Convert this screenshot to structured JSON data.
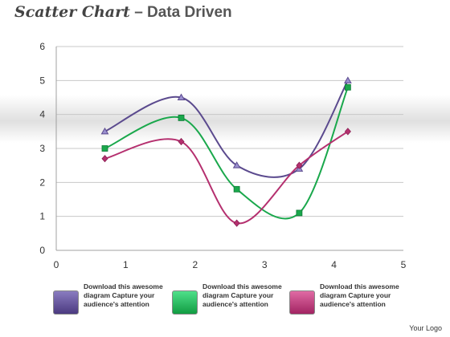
{
  "title": {
    "main": "Scatter Chart",
    "sub": "– Data Driven"
  },
  "chart_data": {
    "type": "scatter",
    "xlim": [
      0,
      5
    ],
    "ylim": [
      0,
      6
    ],
    "x_ticks": [
      0,
      1,
      2,
      3,
      4,
      5
    ],
    "y_ticks": [
      0,
      1,
      2,
      3,
      4,
      5,
      6
    ],
    "grid": "horizontal",
    "smooth_lines": true,
    "series": [
      {
        "color": "#5b4a8e",
        "marker": "triangle",
        "points": [
          [
            0.7,
            3.5
          ],
          [
            1.8,
            4.5
          ],
          [
            2.6,
            2.5
          ],
          [
            3.5,
            2.4
          ],
          [
            4.2,
            5.0
          ]
        ]
      },
      {
        "color": "#1aa84c",
        "marker": "square",
        "points": [
          [
            0.7,
            3.0
          ],
          [
            1.8,
            3.9
          ],
          [
            2.6,
            1.8
          ],
          [
            3.5,
            1.1
          ],
          [
            4.2,
            4.8
          ]
        ]
      },
      {
        "color": "#b5306f",
        "marker": "diamond",
        "points": [
          [
            0.7,
            2.7
          ],
          [
            1.8,
            3.2
          ],
          [
            2.6,
            0.8
          ],
          [
            3.5,
            2.5
          ],
          [
            4.2,
            3.5
          ]
        ]
      }
    ]
  },
  "legend": [
    {
      "text": "Download this awesome diagram Capture your audience's attention",
      "color_top": "#8a7cc0",
      "color_bottom": "#4b3a80"
    },
    {
      "text": "Download this awesome diagram Capture your audience's attention",
      "color_top": "#4fe08a",
      "color_bottom": "#119c42"
    },
    {
      "text": "Download this awesome diagram Capture your audience's attention",
      "color_top": "#e06aa4",
      "color_bottom": "#a22462"
    }
  ],
  "footer": {
    "logo": "Your Logo"
  }
}
